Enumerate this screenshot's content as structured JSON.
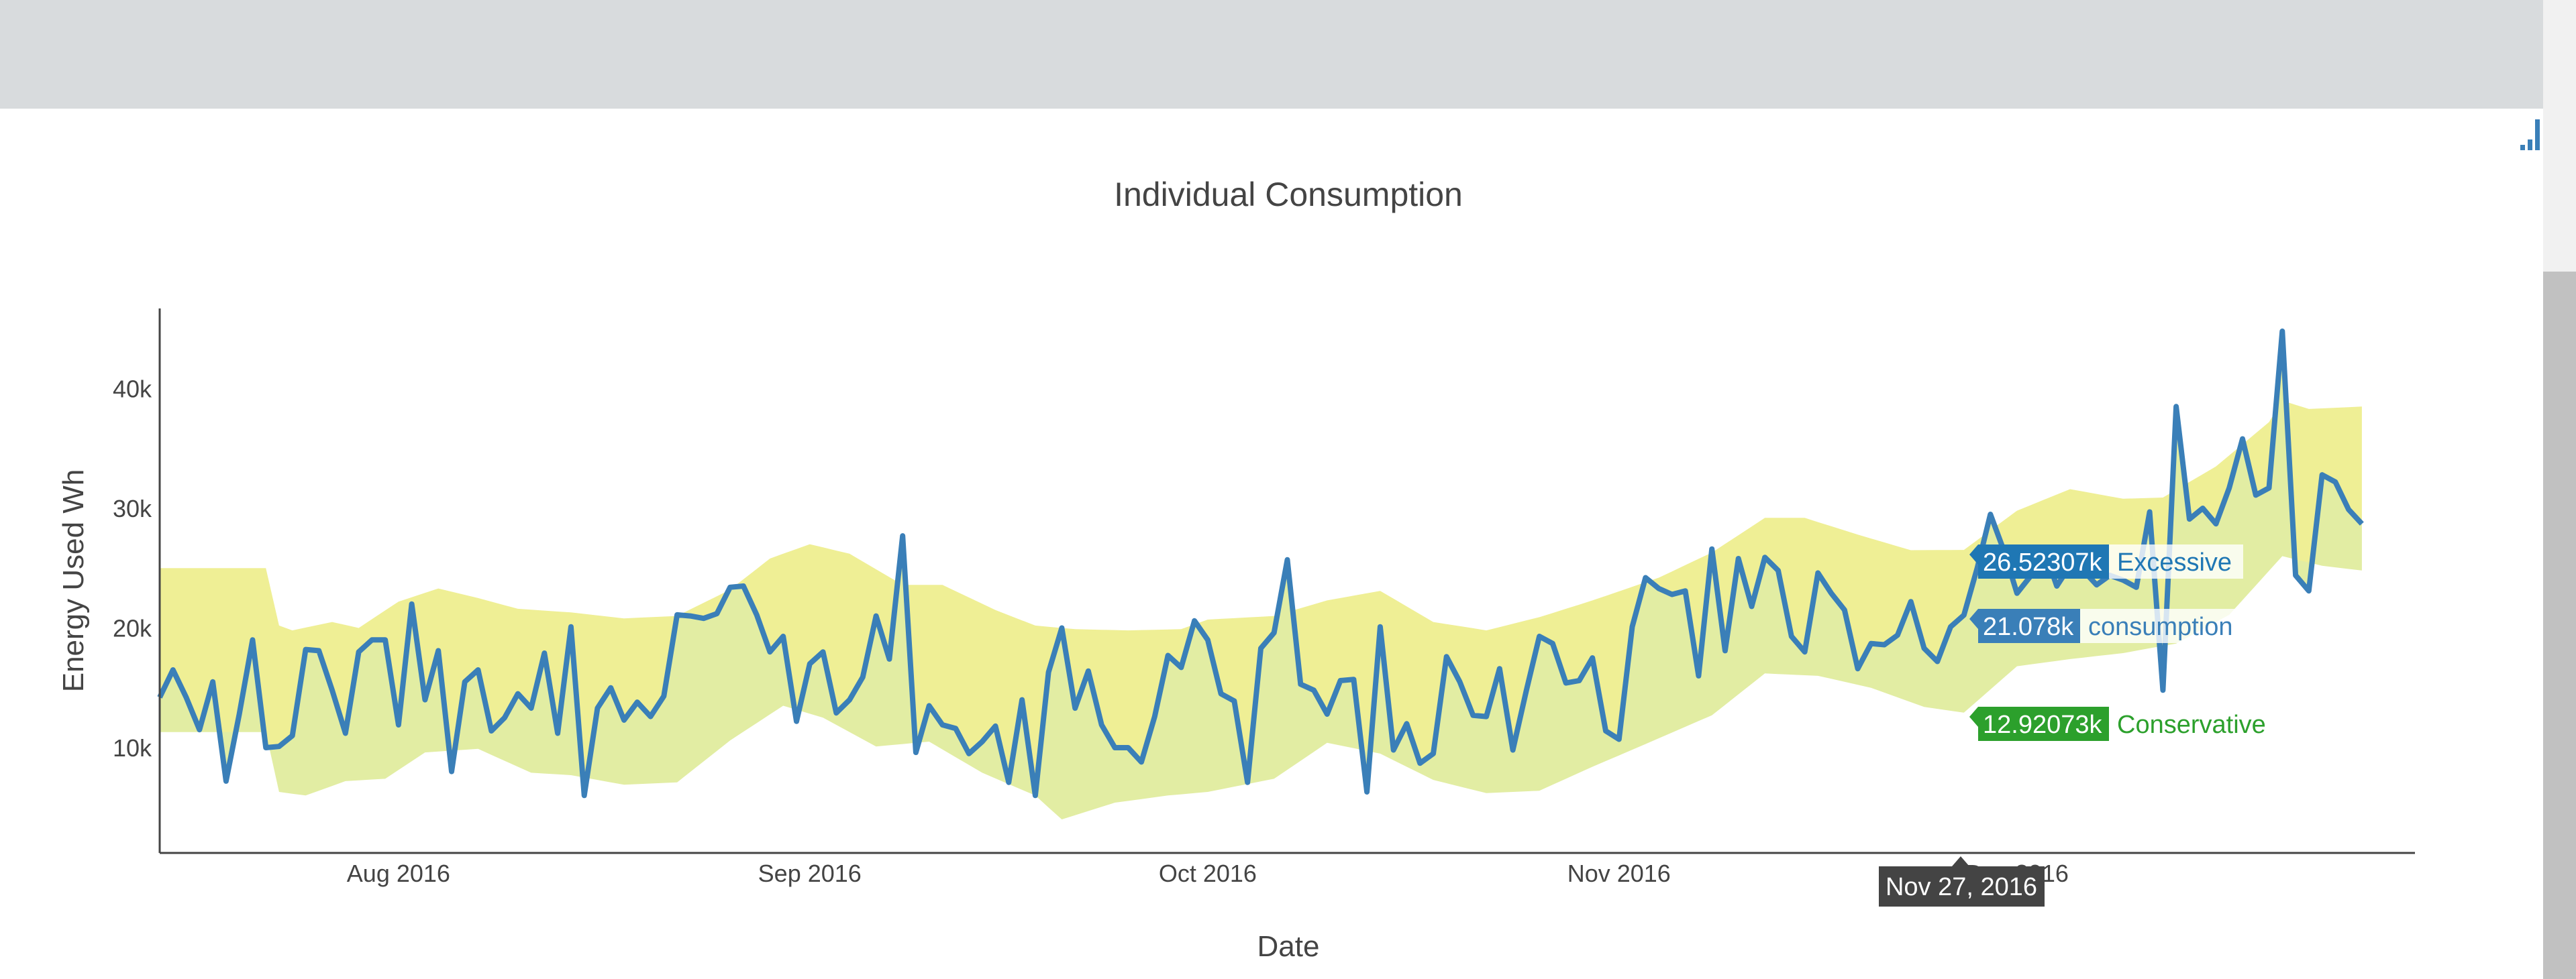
{
  "colors": {
    "consumption": "#3a7fb8",
    "band_upper": "#efef95",
    "band_lower": "#e2eda3",
    "excessive_label": "#1f77b4",
    "conservative_label": "#2ca02c",
    "tooltip_bg": "#444444"
  },
  "modebar": {
    "icon": "bar-chart-icon"
  },
  "hover": {
    "date_label": "Nov 27, 2016",
    "excessive": {
      "value": "26.52307k",
      "name": "Excessive"
    },
    "consumption": {
      "value": "21.078k",
      "name": "consumption"
    },
    "conservative": {
      "value": "12.92073k",
      "name": "Conservative"
    }
  },
  "chart_data": {
    "type": "line",
    "title": "Individual Consumption",
    "xlabel": "Date",
    "ylabel": "Energy Used Wh",
    "x_start": "2016-07-14",
    "x_end": "2016-12-31",
    "ylim": [
      1200,
      46700
    ],
    "x_ticks": [
      {
        "date": "2016-08-01",
        "label": "Aug 2016"
      },
      {
        "date": "2016-09-01",
        "label": "Sep 2016"
      },
      {
        "date": "2016-10-01",
        "label": "Oct 2016"
      },
      {
        "date": "2016-11-01",
        "label": "Nov 2016"
      },
      {
        "date": "2016-12-01",
        "label": "Dec 2016"
      }
    ],
    "y_ticks": [
      {
        "value": 10000,
        "label": "10k"
      },
      {
        "value": 20000,
        "label": "20k"
      },
      {
        "value": 30000,
        "label": "30k"
      },
      {
        "value": 40000,
        "label": "40k"
      }
    ],
    "series": [
      {
        "name": "consumption",
        "points": [
          [
            "2016-07-14",
            14200
          ],
          [
            "2016-07-15",
            16500
          ],
          [
            "2016-07-16",
            14200
          ],
          [
            "2016-07-17",
            11500
          ],
          [
            "2016-07-18",
            15500
          ],
          [
            "2016-07-19",
            7200
          ],
          [
            "2016-07-20",
            12800
          ],
          [
            "2016-07-21",
            19000
          ],
          [
            "2016-07-22",
            10000
          ],
          [
            "2016-07-23",
            10100
          ],
          [
            "2016-07-24",
            11000
          ],
          [
            "2016-07-25",
            18200
          ],
          [
            "2016-07-26",
            18100
          ],
          [
            "2016-07-27",
            14800
          ],
          [
            "2016-07-28",
            11200
          ],
          [
            "2016-07-29",
            18000
          ],
          [
            "2016-07-30",
            19000
          ],
          [
            "2016-07-31",
            19000
          ],
          [
            "2016-08-01",
            11900
          ],
          [
            "2016-08-02",
            22000
          ],
          [
            "2016-08-03",
            14000
          ],
          [
            "2016-08-04",
            18100
          ],
          [
            "2016-08-05",
            8000
          ],
          [
            "2016-08-06",
            15500
          ],
          [
            "2016-08-07",
            16500
          ],
          [
            "2016-08-08",
            11400
          ],
          [
            "2016-08-09",
            12500
          ],
          [
            "2016-08-10",
            14500
          ],
          [
            "2016-08-11",
            13300
          ],
          [
            "2016-08-12",
            17900
          ],
          [
            "2016-08-13",
            11200
          ],
          [
            "2016-08-14",
            20100
          ],
          [
            "2016-08-15",
            6000
          ],
          [
            "2016-08-16",
            13300
          ],
          [
            "2016-08-17",
            15000
          ],
          [
            "2016-08-18",
            12300
          ],
          [
            "2016-08-19",
            13800
          ],
          [
            "2016-08-20",
            12600
          ],
          [
            "2016-08-21",
            14300
          ],
          [
            "2016-08-22",
            21100
          ],
          [
            "2016-08-23",
            21000
          ],
          [
            "2016-08-24",
            20800
          ],
          [
            "2016-08-25",
            21200
          ],
          [
            "2016-08-26",
            23400
          ],
          [
            "2016-08-27",
            23500
          ],
          [
            "2016-08-28",
            21100
          ],
          [
            "2016-08-29",
            18000
          ],
          [
            "2016-08-30",
            19300
          ],
          [
            "2016-08-31",
            12200
          ],
          [
            "2016-09-01",
            17000
          ],
          [
            "2016-09-02",
            18000
          ],
          [
            "2016-09-03",
            12900
          ],
          [
            "2016-09-04",
            14000
          ],
          [
            "2016-09-05",
            15900
          ],
          [
            "2016-09-06",
            21000
          ],
          [
            "2016-09-07",
            17400
          ],
          [
            "2016-09-08",
            27700
          ],
          [
            "2016-09-09",
            9600
          ],
          [
            "2016-09-10",
            13500
          ],
          [
            "2016-09-11",
            11900
          ],
          [
            "2016-09-12",
            11600
          ],
          [
            "2016-09-13",
            9500
          ],
          [
            "2016-09-14",
            10500
          ],
          [
            "2016-09-15",
            11800
          ],
          [
            "2016-09-16",
            7100
          ],
          [
            "2016-09-17",
            14000
          ],
          [
            "2016-09-18",
            6000
          ],
          [
            "2016-09-19",
            16300
          ],
          [
            "2016-09-20",
            20000
          ],
          [
            "2016-09-21",
            13300
          ],
          [
            "2016-09-22",
            16400
          ],
          [
            "2016-09-23",
            11900
          ],
          [
            "2016-09-24",
            10000
          ],
          [
            "2016-09-25",
            10000
          ],
          [
            "2016-09-26",
            8800
          ],
          [
            "2016-09-27",
            12600
          ],
          [
            "2016-09-28",
            17700
          ],
          [
            "2016-09-29",
            16700
          ],
          [
            "2016-09-30",
            20600
          ],
          [
            "2016-10-01",
            19000
          ],
          [
            "2016-10-02",
            14500
          ],
          [
            "2016-10-03",
            13900
          ],
          [
            "2016-10-04",
            7100
          ],
          [
            "2016-10-05",
            18300
          ],
          [
            "2016-10-06",
            19600
          ],
          [
            "2016-10-07",
            25700
          ],
          [
            "2016-10-08",
            15300
          ],
          [
            "2016-10-09",
            14800
          ],
          [
            "2016-10-10",
            12800
          ],
          [
            "2016-10-11",
            15600
          ],
          [
            "2016-10-12",
            15700
          ],
          [
            "2016-10-13",
            6300
          ],
          [
            "2016-10-14",
            20100
          ],
          [
            "2016-10-15",
            9800
          ],
          [
            "2016-10-16",
            12000
          ],
          [
            "2016-10-17",
            8700
          ],
          [
            "2016-10-18",
            9500
          ],
          [
            "2016-10-19",
            17600
          ],
          [
            "2016-10-20",
            15500
          ],
          [
            "2016-10-21",
            12700
          ],
          [
            "2016-10-22",
            12600
          ],
          [
            "2016-10-23",
            16600
          ],
          [
            "2016-10-24",
            9800
          ],
          [
            "2016-10-25",
            14700
          ],
          [
            "2016-10-26",
            19300
          ],
          [
            "2016-10-27",
            18700
          ],
          [
            "2016-10-28",
            15400
          ],
          [
            "2016-10-29",
            15600
          ],
          [
            "2016-10-30",
            17500
          ],
          [
            "2016-10-31",
            11400
          ],
          [
            "2016-11-01",
            10700
          ],
          [
            "2016-11-02",
            20100
          ],
          [
            "2016-11-03",
            24200
          ],
          [
            "2016-11-04",
            23300
          ],
          [
            "2016-11-05",
            22800
          ],
          [
            "2016-11-06",
            23100
          ],
          [
            "2016-11-07",
            16000
          ],
          [
            "2016-11-08",
            26600
          ],
          [
            "2016-11-09",
            18100
          ],
          [
            "2016-11-10",
            25800
          ],
          [
            "2016-11-11",
            21800
          ],
          [
            "2016-11-12",
            25900
          ],
          [
            "2016-11-13",
            24800
          ],
          [
            "2016-11-14",
            19300
          ],
          [
            "2016-11-15",
            18000
          ],
          [
            "2016-11-16",
            24600
          ],
          [
            "2016-11-17",
            22900
          ],
          [
            "2016-11-18",
            21500
          ],
          [
            "2016-11-19",
            16600
          ],
          [
            "2016-11-20",
            18700
          ],
          [
            "2016-11-21",
            18600
          ],
          [
            "2016-11-22",
            19400
          ],
          [
            "2016-11-23",
            22200
          ],
          [
            "2016-11-24",
            18300
          ],
          [
            "2016-11-25",
            17200
          ],
          [
            "2016-11-26",
            20100
          ],
          [
            "2016-11-27",
            21078
          ],
          [
            "2016-11-28",
            25000
          ],
          [
            "2016-11-29",
            29500
          ],
          [
            "2016-11-30",
            26500
          ],
          [
            "2016-12-01",
            22900
          ],
          [
            "2016-12-02",
            24300
          ],
          [
            "2016-12-03",
            26700
          ],
          [
            "2016-12-04",
            23500
          ],
          [
            "2016-12-05",
            25200
          ],
          [
            "2016-12-06",
            24800
          ],
          [
            "2016-12-07",
            23600
          ],
          [
            "2016-12-08",
            24400
          ],
          [
            "2016-12-09",
            24000
          ],
          [
            "2016-12-10",
            23400
          ],
          [
            "2016-12-11",
            29700
          ],
          [
            "2016-12-12",
            14800
          ],
          [
            "2016-12-13",
            38500
          ],
          [
            "2016-12-14",
            29100
          ],
          [
            "2016-12-15",
            30000
          ],
          [
            "2016-12-16",
            28700
          ],
          [
            "2016-12-17",
            31700
          ],
          [
            "2016-12-18",
            35800
          ],
          [
            "2016-12-19",
            31100
          ],
          [
            "2016-12-20",
            31700
          ],
          [
            "2016-12-21",
            44800
          ],
          [
            "2016-12-22",
            24400
          ],
          [
            "2016-12-23",
            23100
          ],
          [
            "2016-12-24",
            32800
          ],
          [
            "2016-12-25",
            32200
          ],
          [
            "2016-12-26",
            29900
          ],
          [
            "2016-12-27",
            28700
          ]
        ]
      },
      {
        "name": "Excessive",
        "points": [
          [
            "2016-07-14",
            25000
          ],
          [
            "2016-07-22",
            25000
          ],
          [
            "2016-07-23",
            20200
          ],
          [
            "2016-07-24",
            19800
          ],
          [
            "2016-07-27",
            20500
          ],
          [
            "2016-07-29",
            20000
          ],
          [
            "2016-08-01",
            22200
          ],
          [
            "2016-08-04",
            23300
          ],
          [
            "2016-08-07",
            22500
          ],
          [
            "2016-08-10",
            21600
          ],
          [
            "2016-08-14",
            21300
          ],
          [
            "2016-08-18",
            20800
          ],
          [
            "2016-08-22",
            21000
          ],
          [
            "2016-08-26",
            23200
          ],
          [
            "2016-08-29",
            25800
          ],
          [
            "2016-09-01",
            27000
          ],
          [
            "2016-09-04",
            26200
          ],
          [
            "2016-09-08",
            23600
          ],
          [
            "2016-09-11",
            23600
          ],
          [
            "2016-09-15",
            21500
          ],
          [
            "2016-09-18",
            20200
          ],
          [
            "2016-09-21",
            19900
          ],
          [
            "2016-09-25",
            19800
          ],
          [
            "2016-09-29",
            19900
          ],
          [
            "2016-10-01",
            20700
          ],
          [
            "2016-10-06",
            21000
          ],
          [
            "2016-10-10",
            22300
          ],
          [
            "2016-10-14",
            23100
          ],
          [
            "2016-10-18",
            20500
          ],
          [
            "2016-10-22",
            19800
          ],
          [
            "2016-10-26",
            20900
          ],
          [
            "2016-10-30",
            22300
          ],
          [
            "2016-11-04",
            24200
          ],
          [
            "2016-11-08",
            26300
          ],
          [
            "2016-11-12",
            29200
          ],
          [
            "2016-11-15",
            29200
          ],
          [
            "2016-11-19",
            27800
          ],
          [
            "2016-11-23",
            26500
          ],
          [
            "2016-11-27",
            26523
          ],
          [
            "2016-12-01",
            29800
          ],
          [
            "2016-12-05",
            31600
          ],
          [
            "2016-12-09",
            30800
          ],
          [
            "2016-12-12",
            30900
          ],
          [
            "2016-12-16",
            33500
          ],
          [
            "2016-12-20",
            37200
          ],
          [
            "2016-12-21",
            39000
          ],
          [
            "2016-12-23",
            38300
          ],
          [
            "2016-12-27",
            38500
          ]
        ]
      },
      {
        "name": "Conservative",
        "points": [
          [
            "2016-07-14",
            11300
          ],
          [
            "2016-07-22",
            11300
          ],
          [
            "2016-07-23",
            6300
          ],
          [
            "2016-07-25",
            6000
          ],
          [
            "2016-07-28",
            7200
          ],
          [
            "2016-07-31",
            7400
          ],
          [
            "2016-08-03",
            9600
          ],
          [
            "2016-08-07",
            9900
          ],
          [
            "2016-08-11",
            7900
          ],
          [
            "2016-08-14",
            7700
          ],
          [
            "2016-08-18",
            6900
          ],
          [
            "2016-08-22",
            7100
          ],
          [
            "2016-08-26",
            10600
          ],
          [
            "2016-08-30",
            13500
          ],
          [
            "2016-09-02",
            12500
          ],
          [
            "2016-09-06",
            10100
          ],
          [
            "2016-09-10",
            10500
          ],
          [
            "2016-09-14",
            7900
          ],
          [
            "2016-09-18",
            6000
          ],
          [
            "2016-09-20",
            4000
          ],
          [
            "2016-09-24",
            5400
          ],
          [
            "2016-09-28",
            6000
          ],
          [
            "2016-10-01",
            6300
          ],
          [
            "2016-10-06",
            7400
          ],
          [
            "2016-10-10",
            10400
          ],
          [
            "2016-10-14",
            9500
          ],
          [
            "2016-10-18",
            7300
          ],
          [
            "2016-10-22",
            6200
          ],
          [
            "2016-10-26",
            6400
          ],
          [
            "2016-10-30",
            8400
          ],
          [
            "2016-11-03",
            10300
          ],
          [
            "2016-11-08",
            12700
          ],
          [
            "2016-11-12",
            16200
          ],
          [
            "2016-11-16",
            16000
          ],
          [
            "2016-11-20",
            15000
          ],
          [
            "2016-11-24",
            13400
          ],
          [
            "2016-11-27",
            12921
          ],
          [
            "2016-12-01",
            16800
          ],
          [
            "2016-12-05",
            17400
          ],
          [
            "2016-12-09",
            17900
          ],
          [
            "2016-12-13",
            18700
          ],
          [
            "2016-12-17",
            21100
          ],
          [
            "2016-12-21",
            26000
          ],
          [
            "2016-12-24",
            25200
          ],
          [
            "2016-12-27",
            24800
          ]
        ]
      }
    ]
  }
}
